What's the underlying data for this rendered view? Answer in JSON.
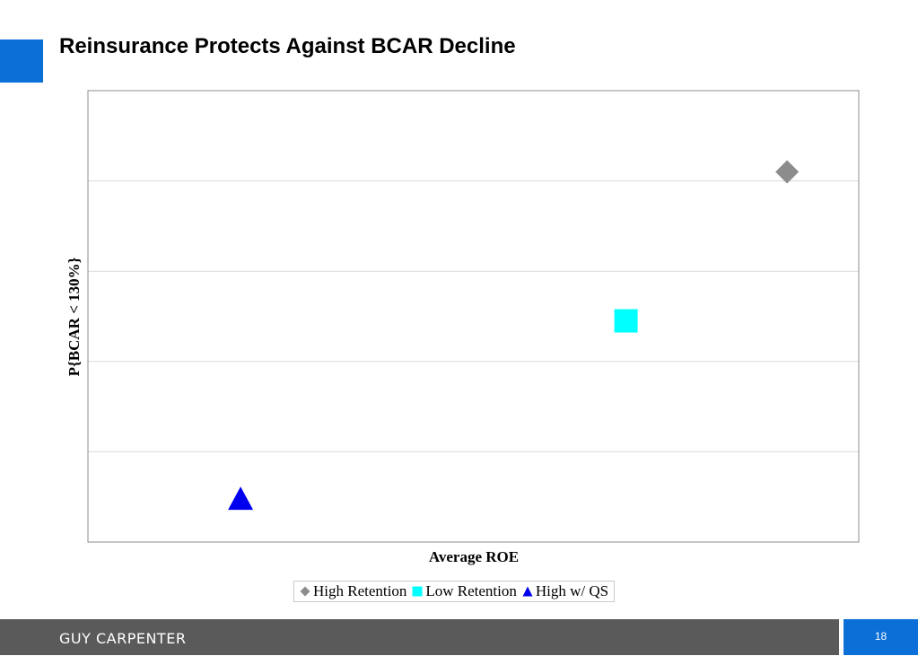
{
  "slide": {
    "title": "Reinsurance Protects Against BCAR Decline",
    "accent_color": "#0a6fd6",
    "footer_color": "#5a5a5a",
    "footer_brand": "GUY CARPENTER",
    "page_number": "18"
  },
  "chart_data": {
    "type": "scatter",
    "xlabel": "Average ROE",
    "ylabel": "P{BCAR < 130%}",
    "xlim": [
      0,
      1
    ],
    "ylim": [
      0,
      1
    ],
    "grid": true,
    "legend_position": "bottom",
    "series": [
      {
        "name": "High Retention",
        "marker": "diamond",
        "color": "#8c8c8c",
        "x": 0.907,
        "y": 0.82
      },
      {
        "name": "Low Retention",
        "marker": "square",
        "color": "#00ffff",
        "x": 0.698,
        "y": 0.49
      },
      {
        "name": "High w/ QS",
        "marker": "triangle",
        "color": "#0000ee",
        "x": 0.198,
        "y": 0.095
      }
    ]
  }
}
